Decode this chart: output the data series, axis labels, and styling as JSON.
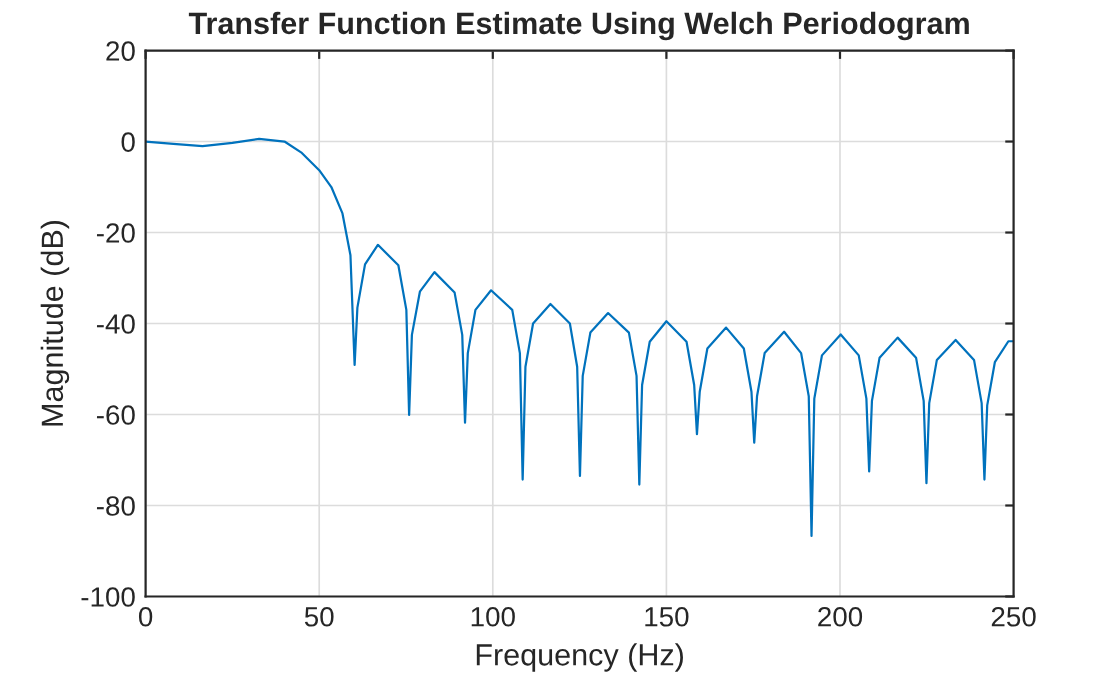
{
  "chart_data": {
    "type": "line",
    "title": "Transfer Function Estimate Using Welch Periodogram",
    "xlabel": "Frequency (Hz)",
    "ylabel": "Magnitude (dB)",
    "xlim": [
      0,
      250
    ],
    "ylim": [
      -100,
      20
    ],
    "xticks": [
      0,
      50,
      100,
      150,
      200,
      250
    ],
    "yticks": [
      -100,
      -80,
      -60,
      -40,
      -20,
      0,
      20
    ],
    "grid": true,
    "series": [
      {
        "color": "#0072bd",
        "x": [
          0,
          8,
          16.4,
          25,
          32.7,
          40,
          45,
          50,
          53.5,
          56.7,
          59,
          60.2,
          61,
          63.2,
          66.9,
          72.8,
          75.1,
          75.9,
          76.7,
          79,
          83.2,
          89,
          91.2,
          92.0,
          92.8,
          95,
          99.5,
          105.6,
          107.8,
          108.6,
          109.4,
          111.6,
          116.6,
          122.2,
          124.3,
          125.1,
          125.9,
          128.1,
          133.2,
          139.2,
          141.4,
          142.2,
          143,
          145.2,
          150,
          155.8,
          158,
          158.8,
          159.6,
          161.8,
          167.2,
          172.3,
          174.5,
          175.3,
          176.1,
          178.3,
          183.9,
          188.8,
          191,
          191.8,
          192.6,
          194.8,
          200.2,
          205.4,
          207.6,
          208.4,
          209.2,
          211.4,
          216.6,
          221.9,
          224.1,
          224.9,
          225.7,
          227.9,
          233.3,
          238.6,
          240.8,
          241.6,
          242.4,
          244.6,
          248.5,
          250
        ],
        "values": [
          0,
          -0.5,
          -1.0,
          -0.3,
          0.6,
          0,
          -2.5,
          -6.3,
          -10,
          -15.8,
          -25,
          -49.1,
          -36.5,
          -27,
          -22.7,
          -27.2,
          -37,
          -60.1,
          -42.5,
          -33,
          -28.7,
          -33.2,
          -42.5,
          -61.8,
          -46.5,
          -37,
          -32.7,
          -37,
          -46.5,
          -74.3,
          -49.5,
          -40,
          -35.7,
          -40,
          -49.5,
          -73.5,
          -51.5,
          -42,
          -37.7,
          -42,
          -51.5,
          -75.4,
          -53.5,
          -44,
          -39.5,
          -44,
          -53.5,
          -64.3,
          -55,
          -45.5,
          -40.9,
          -45.5,
          -55,
          -66.2,
          -56,
          -46.5,
          -41.8,
          -46.5,
          -56,
          -86.7,
          -56.5,
          -47,
          -42.4,
          -47,
          -56.5,
          -72.5,
          -57,
          -47.5,
          -43.1,
          -47.5,
          -57,
          -75.1,
          -57.5,
          -48,
          -43.6,
          -48,
          -57.5,
          -74.3,
          -58,
          -48.5,
          -43.9,
          -43.9
        ]
      }
    ]
  }
}
